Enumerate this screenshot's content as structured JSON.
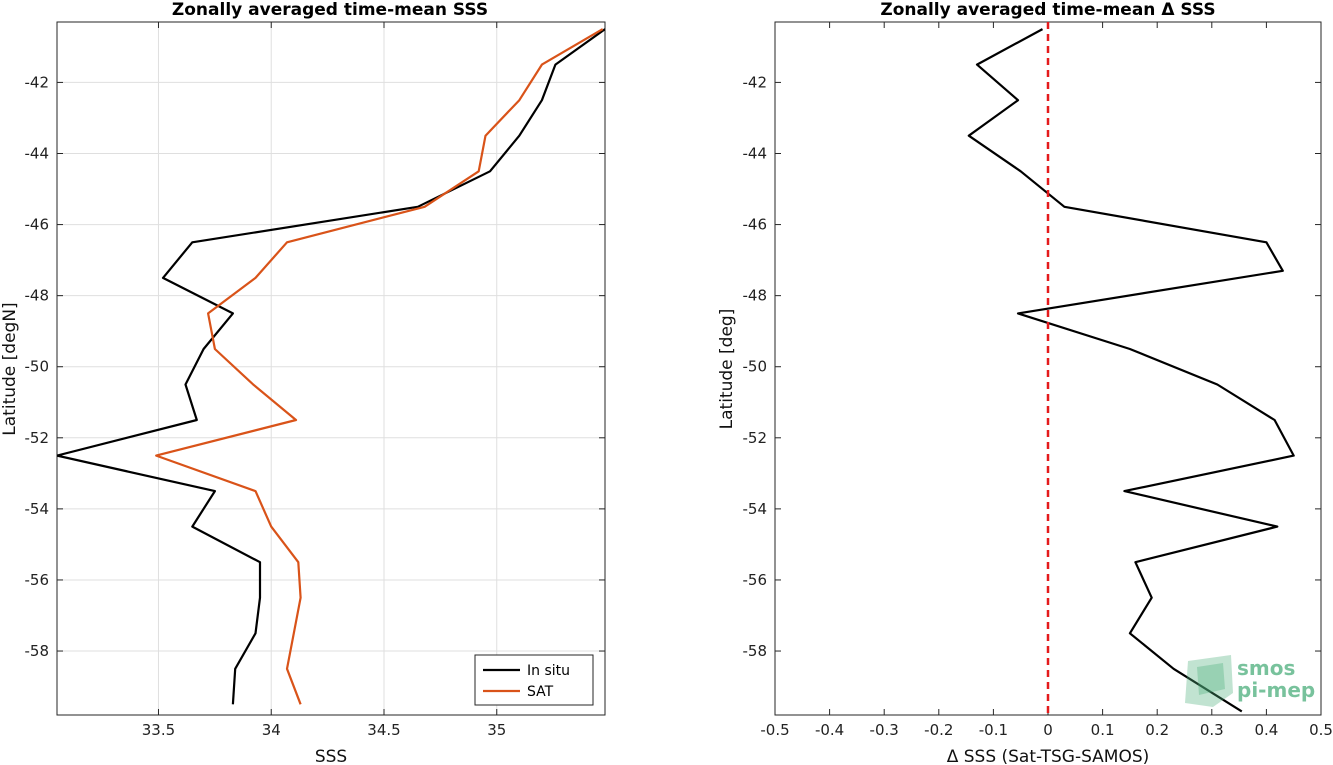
{
  "chart_data": [
    {
      "type": "line",
      "title": "Zonally averaged time-mean SSS",
      "xlabel": "SSS",
      "ylabel": "Latitude [degN]",
      "xlim": [
        33.05,
        35.48
      ],
      "ylim": [
        -59.8,
        -40.3
      ],
      "xticks": [
        "33.5",
        "34",
        "34.5",
        "35"
      ],
      "xtick_values": [
        33.5,
        34.0,
        34.5,
        35.0
      ],
      "yticks": [
        "-42",
        "-44",
        "-46",
        "-48",
        "-50",
        "-52",
        "-54",
        "-56",
        "-58"
      ],
      "ytick_values": [
        -42,
        -44,
        -46,
        -48,
        -50,
        -52,
        -54,
        -56,
        -58
      ],
      "grid": true,
      "legend_position": "bottom-right",
      "series": [
        {
          "name": "In situ",
          "color": "#000000",
          "points": [
            [
              35.48,
              -40.5
            ],
            [
              35.26,
              -41.5
            ],
            [
              35.2,
              -42.5
            ],
            [
              35.1,
              -43.5
            ],
            [
              34.97,
              -44.5
            ],
            [
              34.65,
              -45.5
            ],
            [
              33.65,
              -46.5
            ],
            [
              33.52,
              -47.5
            ],
            [
              33.83,
              -48.5
            ],
            [
              33.7,
              -49.5
            ],
            [
              33.62,
              -50.5
            ],
            [
              33.67,
              -51.5
            ],
            [
              33.05,
              -52.5
            ],
            [
              33.75,
              -53.5
            ],
            [
              33.65,
              -54.5
            ],
            [
              33.95,
              -55.5
            ],
            [
              33.95,
              -56.5
            ],
            [
              33.93,
              -57.5
            ],
            [
              33.84,
              -58.5
            ],
            [
              33.83,
              -59.5
            ]
          ]
        },
        {
          "name": "SAT",
          "color": "#d95319",
          "points": [
            [
              35.47,
              -40.5
            ],
            [
              35.2,
              -41.5
            ],
            [
              35.1,
              -42.5
            ],
            [
              34.95,
              -43.5
            ],
            [
              34.92,
              -44.5
            ],
            [
              34.68,
              -45.5
            ],
            [
              34.07,
              -46.5
            ],
            [
              33.93,
              -47.5
            ],
            [
              33.72,
              -48.5
            ],
            [
              33.75,
              -49.5
            ],
            [
              33.92,
              -50.5
            ],
            [
              34.11,
              -51.5
            ],
            [
              33.49,
              -52.5
            ],
            [
              33.93,
              -53.5
            ],
            [
              34.0,
              -54.5
            ],
            [
              34.12,
              -55.5
            ],
            [
              34.13,
              -56.5
            ],
            [
              34.1,
              -57.5
            ],
            [
              34.07,
              -58.5
            ],
            [
              34.13,
              -59.5
            ]
          ]
        }
      ]
    },
    {
      "type": "line",
      "title": "Zonally averaged time-mean Δ SSS",
      "xlabel": "Δ SSS (Sat-TSG-SAMOS)",
      "ylabel": "Latitude [deg]",
      "xlim": [
        -0.5,
        0.5
      ],
      "ylim": [
        -59.8,
        -40.3
      ],
      "xticks": [
        "-0.5",
        "-0.4",
        "-0.3",
        "-0.2",
        "-0.1",
        "0",
        "0.1",
        "0.2",
        "0.3",
        "0.4",
        "0.5"
      ],
      "xtick_values": [
        -0.5,
        -0.4,
        -0.3,
        -0.2,
        -0.1,
        0,
        0.1,
        0.2,
        0.3,
        0.4,
        0.5
      ],
      "yticks": [
        "-42",
        "-44",
        "-46",
        "-48",
        "-50",
        "-52",
        "-54",
        "-56",
        "-58"
      ],
      "ytick_values": [
        -42,
        -44,
        -46,
        -48,
        -50,
        -52,
        -54,
        -56,
        -58
      ],
      "grid": false,
      "reference_line": {
        "x": 0,
        "color": "#e41a1c",
        "style": "dashed"
      },
      "series": [
        {
          "color": "#000000",
          "points": [
            [
              -0.01,
              -40.5
            ],
            [
              -0.13,
              -41.5
            ],
            [
              -0.055,
              -42.5
            ],
            [
              -0.145,
              -43.5
            ],
            [
              -0.05,
              -44.5
            ],
            [
              0.03,
              -45.5
            ],
            [
              0.4,
              -46.5
            ],
            [
              0.43,
              -47.3
            ],
            [
              -0.055,
              -48.5
            ],
            [
              0.15,
              -49.5
            ],
            [
              0.31,
              -50.5
            ],
            [
              0.415,
              -51.5
            ],
            [
              0.45,
              -52.5
            ],
            [
              0.14,
              -53.5
            ],
            [
              0.42,
              -54.5
            ],
            [
              0.16,
              -55.5
            ],
            [
              0.19,
              -56.5
            ],
            [
              0.15,
              -57.5
            ],
            [
              0.23,
              -58.5
            ],
            [
              0.355,
              -59.7
            ]
          ]
        }
      ]
    }
  ],
  "watermark": {
    "line1": "smos",
    "line2": "pi-mep",
    "color": "#4cae7c"
  }
}
